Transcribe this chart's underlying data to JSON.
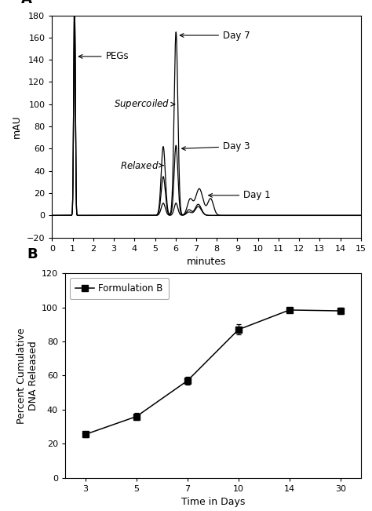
{
  "panel_A": {
    "xlabel": "minutes",
    "ylabel": "mAU",
    "xlim": [
      0,
      15
    ],
    "ylim": [
      -20,
      180
    ],
    "yticks": [
      -20,
      0,
      20,
      40,
      60,
      80,
      100,
      120,
      140,
      160,
      180
    ],
    "xticks": [
      0,
      1,
      2,
      3,
      4,
      5,
      6,
      7,
      8,
      9,
      10,
      11,
      12,
      13,
      14,
      15
    ]
  },
  "panel_B": {
    "xlabel": "Time in Days",
    "ylabel": "Percent Cumulative\nDNA Released",
    "ylim": [
      0,
      120
    ],
    "yticks": [
      0,
      20,
      40,
      60,
      80,
      100,
      120
    ],
    "x_labels": [
      "3",
      "5",
      "7",
      "10",
      "14",
      "30"
    ],
    "x": [
      3,
      5,
      7,
      10,
      14,
      30
    ],
    "y": [
      25.5,
      36.0,
      57.0,
      87.0,
      98.5,
      98.0
    ],
    "yerr": [
      1.5,
      2.0,
      2.5,
      3.0,
      1.5,
      2.0
    ],
    "legend_label": "Formulation B"
  }
}
